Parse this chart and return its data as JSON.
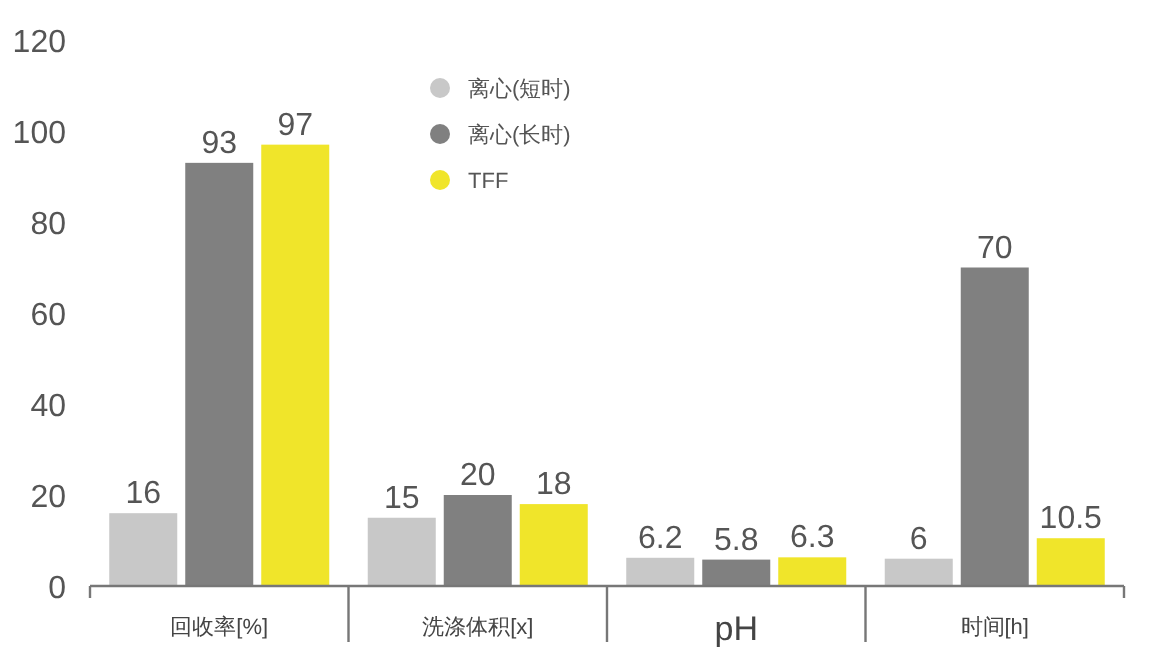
{
  "chart_data": {
    "type": "bar",
    "categories": [
      "回收率[%]",
      "洗涤体积[x]",
      "pH",
      "时间[h]"
    ],
    "series": [
      {
        "name": "离心(短时)",
        "color": "#c8c8c8",
        "values": [
          16,
          15,
          6.2,
          6
        ]
      },
      {
        "name": "离心(长时)",
        "color": "#808080",
        "values": [
          93,
          20,
          5.8,
          70
        ]
      },
      {
        "name": "TFF",
        "color": "#f0e52a",
        "values": [
          97,
          18,
          6.3,
          10.5
        ]
      }
    ],
    "ylim": [
      0,
      120
    ],
    "yticks": [
      0,
      20,
      40,
      60,
      80,
      100,
      120
    ],
    "grid": false,
    "legend": "top",
    "data_labels": true
  }
}
